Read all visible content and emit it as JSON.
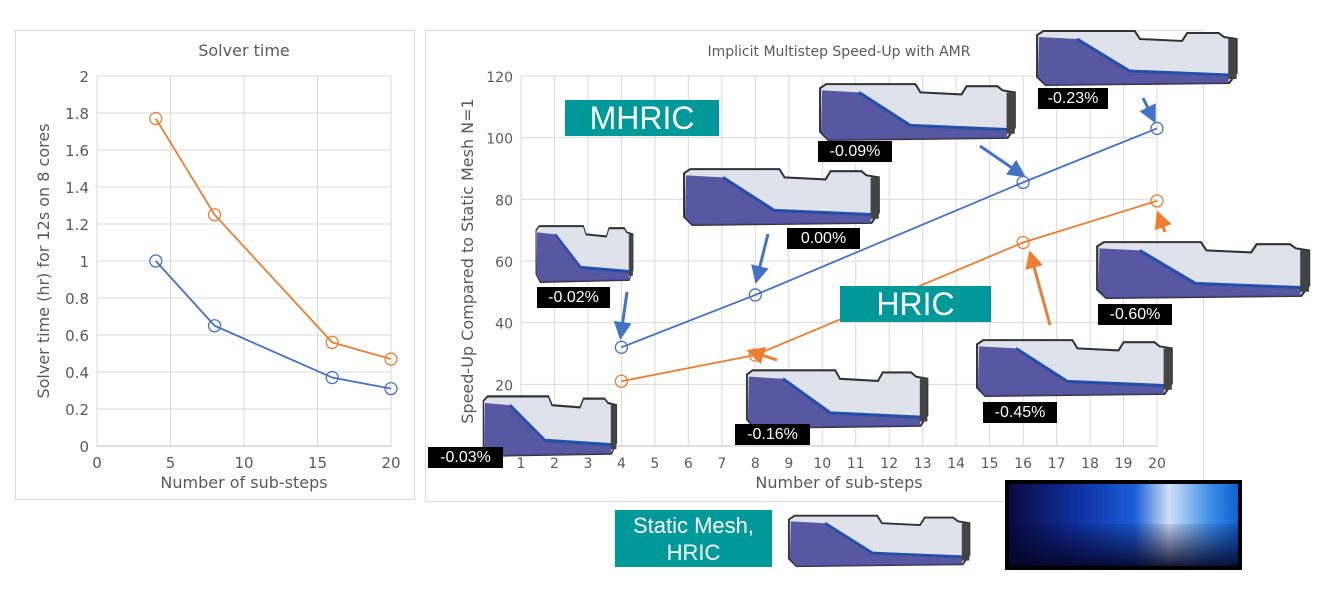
{
  "chart_data": [
    {
      "type": "line",
      "title": "Solver time",
      "xlabel": "Number of sub-steps",
      "ylabel": "Solver time (hr) for 12s on 8 cores",
      "xlim": [
        0,
        20
      ],
      "ylim": [
        0,
        2
      ],
      "xticks": [
        0,
        5,
        10,
        15,
        20
      ],
      "yticks": [
        0,
        0.2,
        0.4,
        0.6,
        0.8,
        1,
        1.2,
        1.4,
        1.6,
        1.8,
        2
      ],
      "ytick_labels": [
        "0",
        "0.2",
        "0.4",
        "0.6",
        "0.8",
        "1",
        "1.2",
        "1.4",
        "1.6",
        "1.8",
        "2"
      ],
      "grid": true,
      "x": [
        4,
        8,
        16,
        20
      ],
      "series": [
        {
          "color": "#ED7D31",
          "values": [
            1.77,
            1.25,
            0.56,
            0.47
          ]
        },
        {
          "color": "#4472C4",
          "values": [
            1.0,
            0.65,
            0.37,
            0.31
          ]
        }
      ]
    },
    {
      "type": "line",
      "title": "Implicit Multistep Speed-Up with AMR",
      "xlabel": "Number of sub-steps",
      "ylabel": "Speed-Up Compared to Static Mesh N=1",
      "xlim": [
        1,
        20
      ],
      "ylim": [
        0,
        120
      ],
      "xticks": [
        1,
        2,
        3,
        4,
        5,
        6,
        7,
        8,
        9,
        10,
        11,
        12,
        13,
        14,
        15,
        16,
        17,
        18,
        19,
        20
      ],
      "yticks": [
        20,
        40,
        60,
        80,
        100,
        120
      ],
      "grid": true,
      "x": [
        4,
        8,
        16,
        20
      ],
      "series": [
        {
          "name": "MHRIC",
          "color": "#4472C4",
          "values": [
            32,
            49,
            85.5,
            103
          ]
        },
        {
          "name": "HRIC",
          "color": "#ED7D31",
          "values": [
            21,
            29.5,
            66,
            79.5
          ]
        }
      ]
    }
  ],
  "annotations": {
    "errors": [
      "-0.03%",
      "-0.02%",
      "0.00%",
      "-0.09%",
      "-0.23%",
      "-0.60%",
      "-0.45%",
      "-0.16%"
    ],
    "mhric_label": "MHRIC",
    "hric_label": "HRIC",
    "static_label_1": "Static Mesh,",
    "static_label_2": "HRIC"
  },
  "colors": {
    "teal": "#009999",
    "blue": "#4472C4",
    "orange": "#ED7D31",
    "fluid": "#4B4B9B"
  }
}
